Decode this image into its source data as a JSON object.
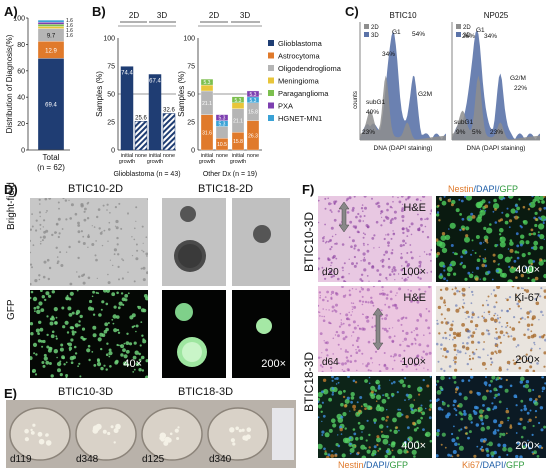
{
  "panel_labels": {
    "A": "A)",
    "B": "B)",
    "C": "C)",
    "D": "D)",
    "E": "E)",
    "F": "F)"
  },
  "colors": {
    "glioblastoma": "#1f3d73",
    "astrocytoma": "#e07a2b",
    "oligodendroglioma": "#b5b5b5",
    "meningioma": "#e8c53a",
    "paraganglioma": "#7cbf4e",
    "pxa": "#7d3fb0",
    "hgnet": "#3aa2d6",
    "hist_2d": "#8e8e8e",
    "hist_3d": "#5b73a8"
  },
  "chart_data": [
    {
      "type": "bar",
      "id": "A",
      "ylabel": "Distribution of Diagnosis(%)",
      "yticks": [
        "0",
        "20",
        "40",
        "60",
        "80",
        "100"
      ],
      "ylim": [
        0,
        100
      ],
      "categories": [
        "Total"
      ],
      "category_sub": "(n = 62)",
      "stack": [
        {
          "name": "Glioblastoma",
          "value": 69.4,
          "label": "69.4"
        },
        {
          "name": "Astrocytoma",
          "value": 12.9,
          "label": "12.9"
        },
        {
          "name": "Oligodendroglioma",
          "value": 9.7,
          "label": "9.7"
        },
        {
          "name": "Meningioma",
          "value": 1.6,
          "label": "1.6"
        },
        {
          "name": "Paraganglioma",
          "value": 1.6,
          "label": "1.6"
        },
        {
          "name": "PXA",
          "value": 1.6,
          "label": "1.6"
        },
        {
          "name": "HGNET-MN1",
          "value": 1.6,
          "label": "1.6"
        }
      ]
    },
    {
      "type": "bar",
      "id": "B1",
      "ylabel": "Samples (%)",
      "yticks": [
        "0",
        "25",
        "50",
        "75",
        "100"
      ],
      "ylim": [
        0,
        100
      ],
      "groups": [
        "2D",
        "3D"
      ],
      "categories": [
        "initial growth",
        "none",
        "initial growth",
        "none"
      ],
      "values": [
        74.4,
        25.6,
        67.4,
        32.6
      ],
      "value_labels": [
        "74.4",
        "25.6",
        "67.4",
        "32.6"
      ],
      "xlabel": "Glioblastoma (n = 43)"
    },
    {
      "type": "bar",
      "id": "B2",
      "ylabel": "Samples (%)",
      "yticks": [
        "0",
        "25",
        "50",
        "75",
        "100"
      ],
      "ylim": [
        0,
        100
      ],
      "groups": [
        "2D",
        "3D"
      ],
      "categories": [
        "initial growth",
        "none",
        "initial growth",
        "none"
      ],
      "xlabel": "Other Dx (n = 19)",
      "bars": [
        {
          "segments": [
            {
              "name": "Astrocytoma",
              "value": 31.6,
              "label": "31.6"
            },
            {
              "name": "Oligodendroglioma",
              "value": 21.1,
              "label": "21.1"
            },
            {
              "name": "Meningioma",
              "value": 5.3,
              "label": ""
            },
            {
              "name": "Paraganglioma",
              "value": 5.3,
              "label": "5.3"
            },
            {
              "name": "PXA",
              "value": 0,
              "label": ""
            },
            {
              "name": "HGNET-MN1",
              "value": 0,
              "label": ""
            }
          ]
        },
        {
          "segments": [
            {
              "name": "Astrocytoma",
              "value": 10.5,
              "label": "10.5"
            },
            {
              "name": "Oligodendroglioma",
              "value": 10.5,
              "label": ""
            },
            {
              "name": "HGNET-MN1",
              "value": 5.3,
              "label": "5.3"
            },
            {
              "name": "PXA",
              "value": 5.3,
              "label": "5.3"
            }
          ]
        },
        {
          "segments": [
            {
              "name": "Astrocytoma",
              "value": 15.8,
              "label": "15.8"
            },
            {
              "name": "Oligodendroglioma",
              "value": 21.1,
              "label": "21.1"
            },
            {
              "name": "Meningioma",
              "value": 5.3,
              "label": ""
            },
            {
              "name": "Paraganglioma",
              "value": 5.3,
              "label": "5.3"
            }
          ]
        },
        {
          "segments": [
            {
              "name": "Astrocytoma",
              "value": 26.3,
              "label": "26.3"
            },
            {
              "name": "Oligodendroglioma",
              "value": 15.8,
              "label": "15.8"
            },
            {
              "name": "HGNET-MN1",
              "value": 5.3,
              "label": "5.3"
            },
            {
              "name": "PXA",
              "value": 5.3,
              "label": "5.3"
            }
          ]
        }
      ],
      "legend": [
        "Glioblastoma",
        "Astrocytoma",
        "Oligodendroglioma",
        "Meningioma",
        "Paraganglioma",
        "PXA",
        "HGNET-MN1"
      ]
    },
    {
      "type": "area",
      "id": "C",
      "xlabel": "DNA (DAPI staining)",
      "ylabel": "counts",
      "legend": [
        "2D",
        "3D"
      ],
      "plots": [
        {
          "title": "BTIC10",
          "annotations": [
            {
              "text": "G1",
              "at": "peak"
            },
            {
              "text": "54%"
            },
            {
              "text": "34%"
            },
            {
              "text": "G2M"
            },
            {
              "text": "subG1"
            },
            {
              "text": "40%"
            },
            {
              "text": "23%"
            }
          ]
        },
        {
          "title": "NP025",
          "annotations": [
            {
              "text": "G1"
            },
            {
              "text": "26%"
            },
            {
              "text": "34%"
            },
            {
              "text": "G2/M"
            },
            {
              "text": "22%"
            },
            {
              "text": "subG1"
            },
            {
              "text": "9%"
            },
            {
              "text": "5%"
            },
            {
              "text": "23%"
            }
          ]
        }
      ]
    }
  ],
  "panel_d": {
    "col1_title": "BTIC10-2D",
    "col2_title": "BTIC18-2D",
    "row1": "Bright-field",
    "row2": "GFP",
    "mag1": "40×",
    "mag2": "200×"
  },
  "panel_e": {
    "title1": "BTIC10-3D",
    "title2": "BTIC18-3D",
    "days": [
      "d119",
      "d348",
      "d125",
      "d340"
    ]
  },
  "panel_f": {
    "row1": "BTIC10-3D",
    "row2": "BTIC18-3D",
    "he": "H&E",
    "ki67": "Ki-67",
    "d20": "d20",
    "d64": "d64",
    "mag100": "100×",
    "mag400": "400×",
    "mag200": "200×",
    "stain1": {
      "a": "Nestin",
      "b": "/DAPI/",
      "c": "GFP"
    },
    "stain2": {
      "a": "Nestin",
      "b": "/DAPI/",
      "c": "GFP"
    },
    "stain3": {
      "a": "Ki67",
      "b": "/DAPI/",
      "c": "GFP"
    }
  }
}
